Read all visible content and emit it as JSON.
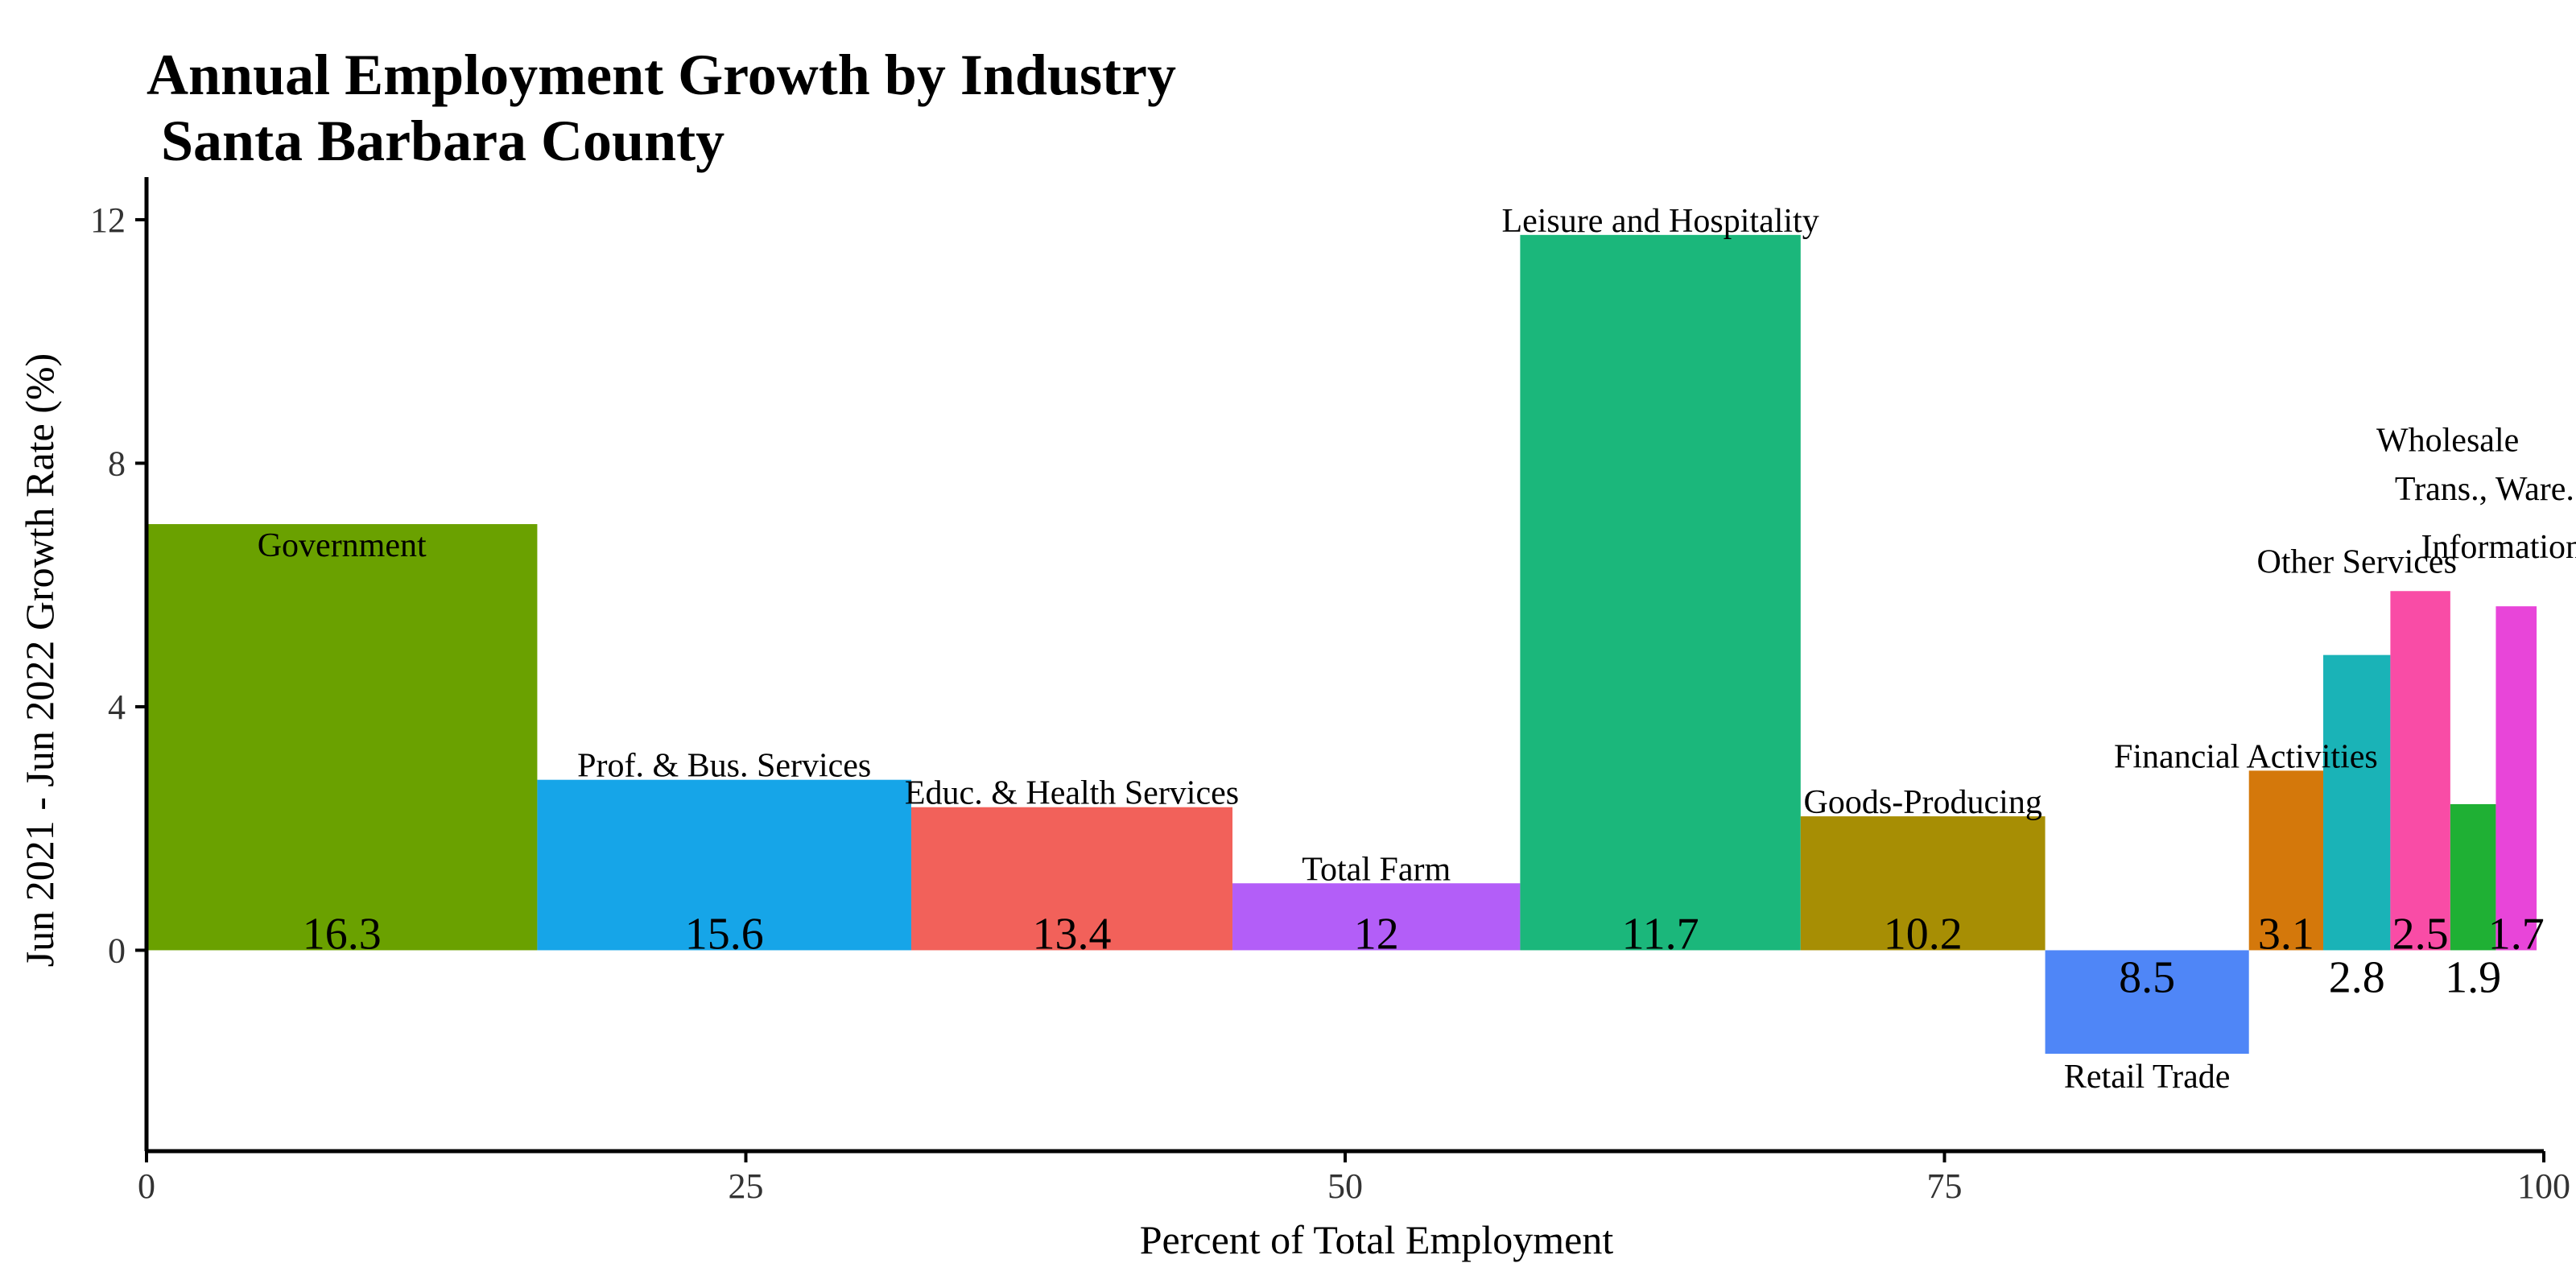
{
  "chart_data": {
    "type": "bar",
    "title_lines": [
      "Annual Employment Growth by Industry",
      " Santa Barbara County"
    ],
    "xlabel": "Percent of Total Employment",
    "ylabel": "Jun 2021 - Jun 2022 Growth Rate (%)",
    "xlim": [
      0,
      100
    ],
    "ylim": [
      -3.3,
      12.7
    ],
    "x_ticks": [
      0,
      25,
      50,
      75,
      100
    ],
    "y_ticks": [
      0,
      4,
      8,
      12
    ],
    "grid": false,
    "legend": "none",
    "series": [
      {
        "industry": "Government",
        "share_label": "16.3",
        "x_start": 0.0,
        "x_end": 16.3,
        "growth": 7.0,
        "color": "#6aa100",
        "label_above": false
      },
      {
        "industry": "Prof. & Bus. Services",
        "share_label": "15.6",
        "x_start": 16.3,
        "x_end": 31.9,
        "growth": 2.8,
        "color": "#16a5e8",
        "label_above": true
      },
      {
        "industry": "Educ. & Health Services",
        "share_label": "13.4",
        "x_start": 31.9,
        "x_end": 45.3,
        "growth": 2.35,
        "color": "#f2615a",
        "label_above": true
      },
      {
        "industry": "Total Farm",
        "share_label": "12",
        "x_start": 45.3,
        "x_end": 57.3,
        "growth": 1.1,
        "color": "#b35ef8",
        "label_above": true
      },
      {
        "industry": "Leisure and Hospitality",
        "share_label": "11.7",
        "x_start": 57.3,
        "x_end": 69.0,
        "growth": 11.75,
        "color": "#1bb77b",
        "label_above": true
      },
      {
        "industry": "Goods-Producing",
        "share_label": "10.2",
        "x_start": 69.0,
        "x_end": 79.2,
        "growth": 2.2,
        "color": "#a78e04",
        "label_above": true
      },
      {
        "industry": "Retail Trade",
        "share_label": "8.5",
        "x_start": 79.2,
        "x_end": 87.7,
        "growth": -1.7,
        "color": "#4f86f7",
        "label_above": false
      },
      {
        "industry": "Financial Activities",
        "share_label": "3.1",
        "x_start": 87.7,
        "x_end": 90.8,
        "growth": 2.95,
        "color": "#d4780b",
        "label_above": true
      },
      {
        "industry": "Other Services",
        "share_label": "2.8",
        "x_start": 90.8,
        "x_end": 93.6,
        "growth": 4.85,
        "color": "#1ab3b7",
        "label_above": true
      },
      {
        "industry": "Wholesale",
        "share_label": "2.5",
        "x_start": 93.6,
        "x_end": 96.1,
        "growth": 5.9,
        "color": "#f94ca6",
        "label_above": true
      },
      {
        "industry": "Trans., Ware. & Util.",
        "share_label": "1.9",
        "x_start": 96.1,
        "x_end": 98.0,
        "growth": 2.4,
        "color": "#1fb034",
        "label_above": true
      },
      {
        "industry": "Information",
        "share_label": "1.7",
        "x_start": 98.0,
        "x_end": 99.7,
        "growth": 5.65,
        "color": "#e845d9",
        "label_above": true
      }
    ]
  }
}
